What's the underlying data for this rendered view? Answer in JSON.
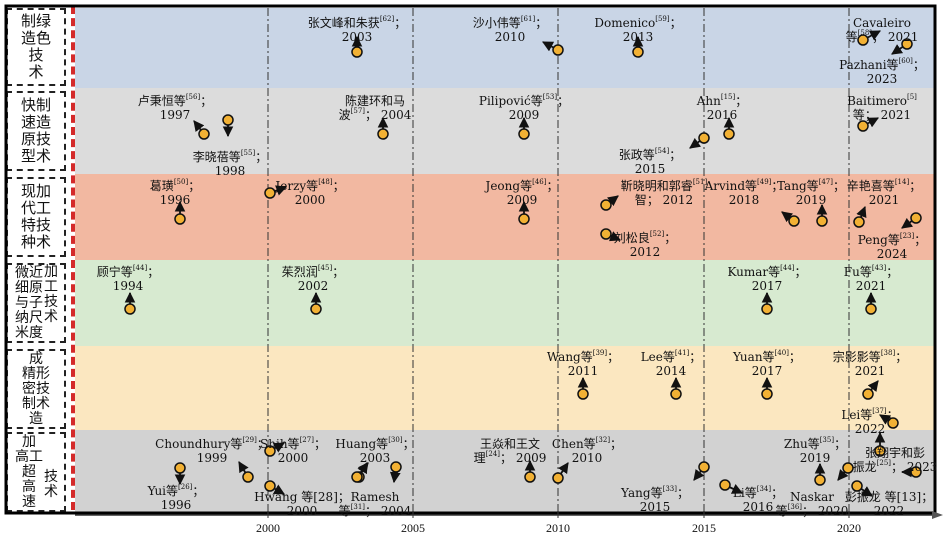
{
  "colors": {
    "band_green": "#c9d5e6",
    "band_rapid": "#dcdcdc",
    "band_special": "#f2b8a1",
    "band_micro": "#d7ead0",
    "band_precision": "#fbe7c0",
    "band_highspeed": "#d2d2d2",
    "dot_fill": "#f2b134",
    "red_line": "#d42a2a"
  },
  "categories": [
    {
      "id": "green",
      "text": "制绿\n造色\n技\n术"
    },
    {
      "id": "rapid",
      "text": "快制\n速造\n原技\n型术"
    },
    {
      "id": "special",
      "text": "现加\n代工\n特技\n种术"
    },
    {
      "id": "micro",
      "text": "微近\n细原\n与子\n纳尺\n米度"
    },
    {
      "id": "precision",
      "text": "成\n精形\n密技\n制术\n造"
    },
    {
      "id": "highspeed",
      "text": "加\n高工\n超\n高\n速"
    }
  ],
  "category_side_text": [
    {
      "id": "micro",
      "text": "加\n工\n技\n术"
    },
    {
      "id": "highspeed",
      "text": "技\n术"
    }
  ],
  "axis": {
    "ticks": [
      "2000",
      "2005",
      "2010",
      "2015",
      "2020"
    ]
  },
  "events": [
    {
      "id": "zhang-zhu",
      "name": "张文峰和朱获",
      "ref": "[62]",
      "year": "2003",
      "sep": "；"
    },
    {
      "id": "sha",
      "name": "沙小伟等",
      "ref": "[61]",
      "year": "2010",
      "sep": "；"
    },
    {
      "id": "domenico",
      "name": "Domenico",
      "ref": "[59]",
      "year": "2013",
      "sep": "；"
    },
    {
      "id": "cavaleiro",
      "name": "Cavaleiro",
      "ref": "",
      "year": "2021",
      "line2_prefix": "等",
      "line2_ref": "[58]",
      "sep": "；"
    },
    {
      "id": "pazhani",
      "name": "Pazhani等",
      "ref": "[60]",
      "year": "2023",
      "sep": "；"
    },
    {
      "id": "lu",
      "name": "卢秉恒等",
      "ref": "[56]",
      "year": "1997",
      "sep": "；"
    },
    {
      "id": "li-xr",
      "name": "李晓蓓等",
      "ref": "[55]",
      "year": "1998",
      "sep": "；"
    },
    {
      "id": "chen-ma",
      "name": "陈建环和马",
      "ref": "",
      "year": "2004",
      "line2_prefix": "波",
      "line2_ref": "[57]",
      "sep": "；"
    },
    {
      "id": "pilipovic",
      "name": "Pilipović等",
      "ref": "[53]",
      "year": "2009",
      "sep": "；"
    },
    {
      "id": "ahn",
      "name": "Ahn",
      "ref": "[15]",
      "year": "2016",
      "sep": "；"
    },
    {
      "id": "zhang-zheng",
      "name": "张政等",
      "ref": "[54]",
      "year": "2015",
      "sep": "；"
    },
    {
      "id": "baitimero",
      "name": "Baitimero",
      "ref": "[5]",
      "year": "2021",
      "line2_prefix": "等",
      "sep": "；"
    },
    {
      "id": "ge",
      "name": "葛璜",
      "ref": "[50]",
      "year": "1996",
      "sep": "；"
    },
    {
      "id": "jerzy",
      "name": "Jerzy等",
      "ref": "[48]",
      "year": "2000",
      "sep": "；"
    },
    {
      "id": "jeong",
      "name": "Jeong等",
      "ref": "[46]",
      "year": "2009",
      "sep": "；"
    },
    {
      "id": "jin-guo",
      "name": "靳晓明和郭睿",
      "ref": "[51]",
      "year": "2012",
      "line2_prefix": "智",
      "sep": "；"
    },
    {
      "id": "liu",
      "name": "刘松良",
      "ref": "[52]",
      "year": "2012",
      "sep": "；"
    },
    {
      "id": "arvind",
      "name": "Arvind等",
      "ref": "[49]",
      "year": "2018",
      "sep": "；"
    },
    {
      "id": "tang",
      "name": "Tang等",
      "ref": "[47]",
      "year": "2019",
      "sep": "；"
    },
    {
      "id": "xin",
      "name": "辛艳喜等",
      "ref": "[14]",
      "year": "2021",
      "sep": "；"
    },
    {
      "id": "peng",
      "name": "Peng等",
      "ref": "[23]",
      "year": "2024",
      "sep": "；"
    },
    {
      "id": "gu",
      "name": "顾宁等",
      "ref": "[44]",
      "year": "1994",
      "sep": "；"
    },
    {
      "id": "zhu-lr",
      "name": "茱烈润",
      "ref": "[45]",
      "year": "2002",
      "sep": "；"
    },
    {
      "id": "kumar",
      "name": "Kumar等",
      "ref": "[44]",
      "year": "2017",
      "sep": "；"
    },
    {
      "id": "fu",
      "name": "Fu等",
      "ref": "[43]",
      "year": "2021",
      "sep": "；"
    },
    {
      "id": "wang",
      "name": "Wang等",
      "ref": "[39]",
      "year": "2011",
      "sep": "；"
    },
    {
      "id": "lee",
      "name": "Lee等",
      "ref": "[41]",
      "year": "2014",
      "sep": "；"
    },
    {
      "id": "yuan",
      "name": "Yuan等",
      "ref": "[40]",
      "year": "2017",
      "sep": "；"
    },
    {
      "id": "zong",
      "name": "宗影影等",
      "ref": "[38]",
      "year": "2021",
      "sep": "；"
    },
    {
      "id": "lei",
      "name": "Lei等",
      "ref": "[37]",
      "year": "2022",
      "sep": "；"
    },
    {
      "id": "choundhury",
      "name": "Choundhury等",
      "ref": "[29]",
      "year": "1999",
      "sep": "；"
    },
    {
      "id": "shih",
      "name": "Shih等",
      "ref": "[27]",
      "year": "2000",
      "sep": "；"
    },
    {
      "id": "huang30",
      "name": "Huang等",
      "ref": "[30]",
      "year": "2003",
      "sep": "；"
    },
    {
      "id": "wang-wang",
      "name": "王焱和王文",
      "ref": "",
      "year": "2009",
      "line2_prefix": "理",
      "line2_ref": "[24]",
      "sep": "；"
    },
    {
      "id": "chen32",
      "name": "Chen等",
      "ref": "[32]",
      "year": "2010",
      "sep": "；"
    },
    {
      "id": "zhu35",
      "name": "Zhu等",
      "ref": "[35]",
      "year": "2019",
      "sep": "；"
    },
    {
      "id": "yui",
      "name": "Yui等",
      "ref": "[26]",
      "year": "1996",
      "sep": "；"
    },
    {
      "id": "hwang",
      "name": "Hwang",
      "ref": "",
      "year": "2000",
      "pre_ref": "等[28]",
      "sep": "；"
    },
    {
      "id": "ramesh",
      "name": "Ramesh",
      "ref": "",
      "year": "2004",
      "line2_prefix": "等",
      "line2_ref": "[31]",
      "sep": "；"
    },
    {
      "id": "yang",
      "name": "Yang等",
      "ref": "[33]",
      "year": "2015",
      "sep": "；"
    },
    {
      "id": "li34",
      "name": "Li等",
      "ref": "[34]",
      "year": "2016",
      "sep": "；"
    },
    {
      "id": "naskar",
      "name": "Naskar",
      "ref": "",
      "year": "2020",
      "line2_prefix": "等",
      "line2_ref": "[36]",
      "sep": "；"
    },
    {
      "id": "zhang-peng",
      "name": "张翔宇和彭",
      "ref": "",
      "year": "2023",
      "line2_prefix": "振龙",
      "line2_ref": "[25]",
      "sep": "；"
    },
    {
      "id": "peng-zl",
      "name": "彭振龙",
      "ref": "",
      "year": "2022",
      "pre_ref": "等[13]",
      "sep": "；"
    }
  ]
}
